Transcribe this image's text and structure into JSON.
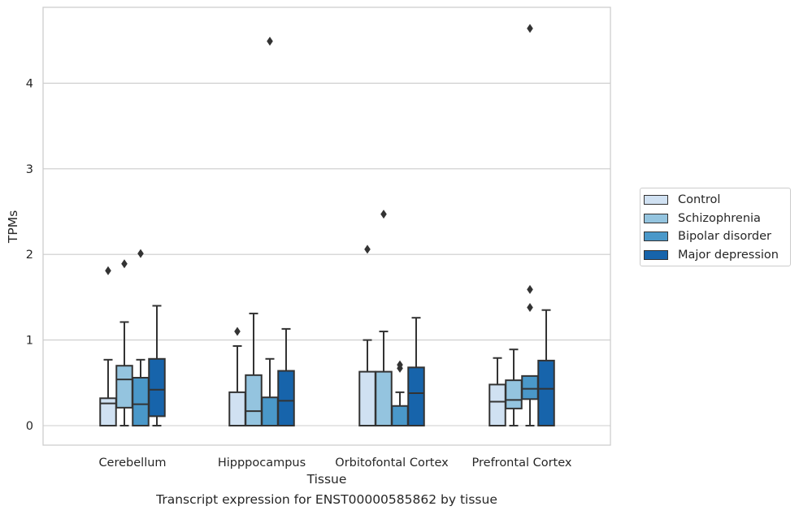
{
  "chart_data": {
    "type": "box",
    "xlabel": "Tissue",
    "ylabel": "TPMs",
    "caption": "Transcript expression for ENST00000585862 by tissue",
    "categories": [
      "Cerebellum",
      "Hipppocampus",
      "Orbitofontal Cortex",
      "Prefrontal Cortex"
    ],
    "ylim": [
      -0.22,
      4.9
    ],
    "yticks": [
      0,
      1,
      2,
      3,
      4
    ],
    "grid": true,
    "legend_position": "right",
    "series": [
      {
        "name": "Control",
        "color": "#d0e1f2",
        "boxes": [
          {
            "min": 0,
            "q1": 0,
            "median": 0.26,
            "q3": 0.32,
            "max": 0.77,
            "outliers": [
              1.81
            ]
          },
          {
            "min": 0,
            "q1": 0,
            "median": 0,
            "q3": 0.39,
            "max": 0.93,
            "outliers": [
              1.1
            ]
          },
          {
            "min": 0,
            "q1": 0,
            "median": 0,
            "q3": 0.63,
            "max": 1.0,
            "outliers": [
              2.06
            ]
          },
          {
            "min": 0,
            "q1": 0,
            "median": 0.28,
            "q3": 0.48,
            "max": 0.79,
            "outliers": []
          }
        ]
      },
      {
        "name": "Schizophrenia",
        "color": "#94c4df",
        "boxes": [
          {
            "min": 0,
            "q1": 0.21,
            "median": 0.54,
            "q3": 0.7,
            "max": 1.21,
            "outliers": [
              1.89
            ]
          },
          {
            "min": 0,
            "q1": 0,
            "median": 0.17,
            "q3": 0.59,
            "max": 1.31,
            "outliers": []
          },
          {
            "min": 0,
            "q1": 0,
            "median": 0,
            "q3": 0.63,
            "max": 1.1,
            "outliers": [
              2.47
            ]
          },
          {
            "min": 0,
            "q1": 0.2,
            "median": 0.3,
            "q3": 0.53,
            "max": 0.89,
            "outliers": []
          }
        ]
      },
      {
        "name": "Bipolar disorder",
        "color": "#4a98c9",
        "boxes": [
          {
            "min": 0,
            "q1": 0,
            "median": 0.25,
            "q3": 0.56,
            "max": 0.77,
            "outliers": [
              2.01
            ]
          },
          {
            "min": 0,
            "q1": 0,
            "median": 0,
            "q3": 0.33,
            "max": 0.78,
            "outliers": [
              4.49
            ]
          },
          {
            "min": 0,
            "q1": 0,
            "median": 0,
            "q3": 0.23,
            "max": 0.39,
            "outliers": [
              0.67,
              0.71
            ]
          },
          {
            "min": 0,
            "q1": 0.31,
            "median": 0.43,
            "q3": 0.58,
            "max": 0.58,
            "outliers": [
              1.38,
              1.59,
              4.64
            ]
          }
        ]
      },
      {
        "name": "Major depression",
        "color": "#1764ab",
        "boxes": [
          {
            "min": 0,
            "q1": 0.11,
            "median": 0.42,
            "q3": 0.78,
            "max": 1.4,
            "outliers": []
          },
          {
            "min": 0,
            "q1": 0,
            "median": 0.29,
            "q3": 0.64,
            "max": 1.13,
            "outliers": []
          },
          {
            "min": 0,
            "q1": 0,
            "median": 0.38,
            "q3": 0.68,
            "max": 1.26,
            "outliers": []
          },
          {
            "min": 0,
            "q1": 0,
            "median": 0.43,
            "q3": 0.76,
            "max": 1.35,
            "outliers": []
          }
        ]
      }
    ]
  }
}
